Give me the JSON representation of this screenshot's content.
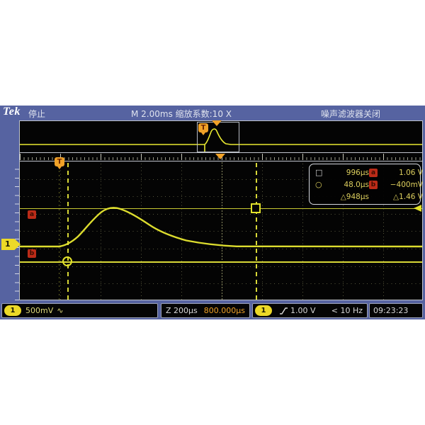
{
  "titlebar": {
    "logo": "Tek",
    "run_state": "停止",
    "center": "M 2.00ms 缩放系数:10 X",
    "right": "噪声滤波器关闭"
  },
  "markers": {
    "trigger_letter": "T",
    "channel_number": "1",
    "cursor_a_letter": "a",
    "cursor_b_letter": "b"
  },
  "measure_box": {
    "rows": [
      {
        "symbol": "□",
        "time": "996µs",
        "badge": "a",
        "value": "1.06 V"
      },
      {
        "symbol": "○",
        "time": "48.0µs",
        "badge": "b",
        "value": "−400mV"
      },
      {
        "symbol": "",
        "time": "△948µs",
        "badge": "",
        "value": "△1.46 V"
      }
    ]
  },
  "statusbar": {
    "channel": {
      "badge": "1",
      "scale": "500mV",
      "coupling_symbol": "∿"
    },
    "zoom": {
      "label": "Z 200µs",
      "position": "800.000µs"
    },
    "trigger": {
      "badge": "1",
      "level": "1.00 V",
      "frequency": "< 10 Hz"
    },
    "clock": "09:23:23"
  },
  "colors": {
    "frame_blue": "#5663a1",
    "trace_yellow": "#e8e830",
    "accent_orange": "#f0a228",
    "badge_red": "#bb2b18",
    "channel_yellow": "#ecd927"
  }
}
